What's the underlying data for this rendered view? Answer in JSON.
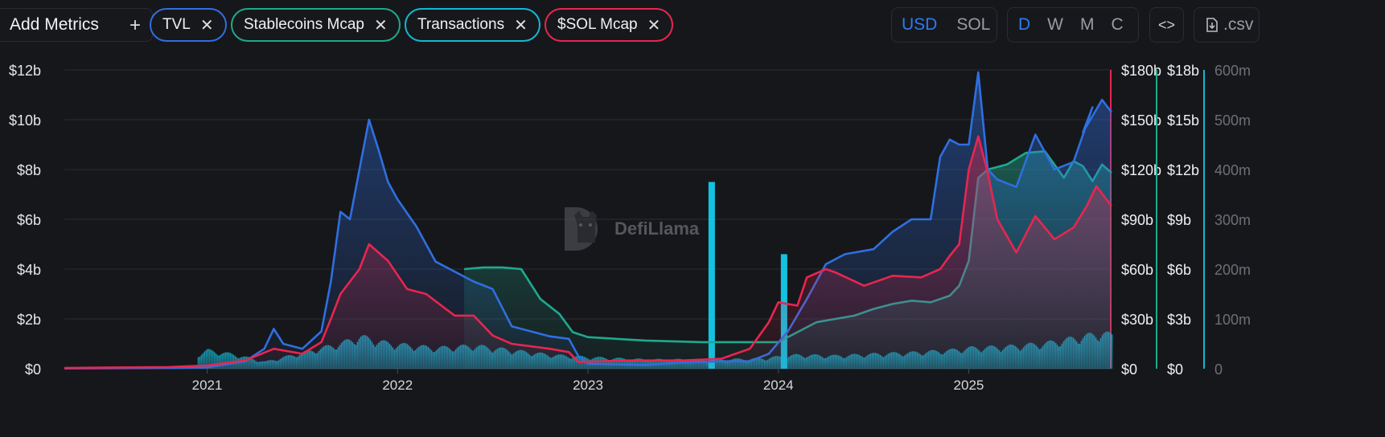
{
  "toolbar": {
    "add_metrics_label": "Add Metrics",
    "add_icon": "plus-icon",
    "chips": [
      {
        "label": "TVL",
        "color": "#2f6fe0"
      },
      {
        "label": "Stablecoins Mcap",
        "color": "#1fa98e"
      },
      {
        "label": "Transactions",
        "color": "#13b8d6"
      },
      {
        "label": "$SOL Mcap",
        "color": "#e8264f"
      }
    ],
    "denomination": {
      "options": [
        "USD",
        "SOL"
      ],
      "selected": "USD"
    },
    "period": {
      "options": [
        "D",
        "W",
        "M",
        "C"
      ],
      "selected": "D"
    },
    "embed_icon": "code-icon",
    "csv_label": ".csv",
    "csv_icon": "file-download-icon"
  },
  "watermark": {
    "text": "DefiLlama",
    "icon": "llama-logo-icon"
  },
  "chart_data": {
    "type": "area",
    "x_labels": [
      "2021",
      "2022",
      "2023",
      "2024",
      "2025"
    ],
    "axes": {
      "tvl": {
        "ticks": [
          "$0",
          "$2b",
          "$4b",
          "$6b",
          "$8b",
          "$10b",
          "$12b"
        ],
        "range": [
          0,
          12
        ],
        "unit": "b USD"
      },
      "sol_mcap": {
        "ticks": [
          "$0",
          "$30b",
          "$60b",
          "$90b",
          "$120b",
          "$150b",
          "$180b"
        ],
        "range": [
          0,
          180
        ],
        "unit": "b USD",
        "color": "#e8264f"
      },
      "stablecoins": {
        "ticks": [
          "$0",
          "$3b",
          "$6b",
          "$9b",
          "$12b",
          "$15b",
          "$18b"
        ],
        "range": [
          0,
          18
        ],
        "unit": "b USD",
        "color": "#1fa98e"
      },
      "transactions": {
        "ticks": [
          "0",
          "100m",
          "200m",
          "300m",
          "400m",
          "500m",
          "600m"
        ],
        "range": [
          0,
          600
        ],
        "unit": "m",
        "color": "#13b8d6"
      }
    },
    "series": [
      {
        "name": "TVL",
        "axis": "tvl",
        "color": "#2f6fe0",
        "x": [
          2020.25,
          2020.8,
          2021.0,
          2021.2,
          2021.3,
          2021.35,
          2021.4,
          2021.5,
          2021.6,
          2021.65,
          2021.7,
          2021.75,
          2021.8,
          2021.85,
          2021.9,
          2021.95,
          2022.0,
          2022.1,
          2022.2,
          2022.3,
          2022.4,
          2022.5,
          2022.6,
          2022.7,
          2022.8,
          2022.9,
          2022.95,
          2023.0,
          2023.3,
          2023.5,
          2023.7,
          2023.85,
          2023.95,
          2024.05,
          2024.15,
          2024.25,
          2024.35,
          2024.5,
          2024.6,
          2024.7,
          2024.8,
          2024.85,
          2024.9,
          2024.95,
          2025.0,
          2025.05,
          2025.1,
          2025.15,
          2025.25,
          2025.35,
          2025.45,
          2025.55,
          2025.65,
          2025.6,
          2025.7,
          2025.75
        ],
        "values": [
          0.01,
          0.03,
          0.05,
          0.3,
          0.8,
          1.6,
          1.0,
          0.8,
          1.5,
          3.5,
          6.3,
          6.0,
          8.0,
          10.0,
          8.8,
          7.5,
          6.8,
          5.7,
          4.3,
          3.9,
          3.5,
          3.2,
          1.7,
          1.5,
          1.3,
          1.2,
          0.5,
          0.2,
          0.15,
          0.25,
          0.3,
          0.3,
          0.6,
          1.5,
          2.8,
          4.2,
          4.6,
          4.8,
          5.5,
          6.0,
          6.0,
          8.5,
          9.2,
          9.0,
          9.0,
          11.9,
          8.0,
          7.6,
          7.3,
          9.4,
          8.0,
          8.3,
          10.5,
          9.5,
          10.8,
          10.3
        ]
      },
      {
        "name": "$SOL Mcap",
        "axis": "sol_mcap",
        "color": "#e8264f",
        "x": [
          2020.25,
          2020.8,
          2021.0,
          2021.2,
          2021.35,
          2021.5,
          2021.6,
          2021.65,
          2021.7,
          2021.8,
          2021.85,
          2021.95,
          2022.05,
          2022.15,
          2022.3,
          2022.4,
          2022.5,
          2022.6,
          2022.8,
          2022.9,
          2022.95,
          2023.2,
          2023.5,
          2023.7,
          2023.85,
          2023.95,
          2024.0,
          2024.1,
          2024.15,
          2024.25,
          2024.3,
          2024.45,
          2024.6,
          2024.75,
          2024.85,
          2024.9,
          2024.95,
          2025.0,
          2025.05,
          2025.1,
          2025.15,
          2025.25,
          2025.35,
          2025.45,
          2025.55,
          2025.62,
          2025.67,
          2025.75
        ],
        "values": [
          0.5,
          1,
          2,
          5,
          12,
          9,
          16,
          30,
          45,
          60,
          75,
          65,
          48,
          45,
          32,
          32,
          20,
          15,
          12,
          10,
          4,
          5,
          5,
          6,
          12,
          28,
          40,
          38,
          55,
          60,
          58,
          50,
          56,
          55,
          60,
          68,
          75,
          120,
          140,
          118,
          90,
          70,
          92,
          78,
          85,
          98,
          110,
          98
        ]
      },
      {
        "name": "Stablecoins Mcap",
        "axis": "stablecoins",
        "color": "#1fa98e",
        "x": [
          2022.35,
          2022.45,
          2022.55,
          2022.65,
          2022.75,
          2022.85,
          2022.92,
          2023.0,
          2023.3,
          2023.6,
          2023.9,
          2024.0,
          2024.2,
          2024.4,
          2024.5,
          2024.6,
          2024.7,
          2024.8,
          2024.9,
          2024.95,
          2025.0,
          2025.05,
          2025.1,
          2025.2,
          2025.3,
          2025.4,
          2025.5,
          2025.55,
          2025.6,
          2025.65,
          2025.7,
          2025.75
        ],
        "values": [
          6.0,
          6.1,
          6.1,
          6.0,
          4.2,
          3.3,
          2.2,
          1.9,
          1.7,
          1.6,
          1.6,
          1.6,
          2.8,
          3.2,
          3.6,
          3.9,
          4.1,
          4.0,
          4.4,
          5.0,
          6.5,
          11.5,
          12.0,
          12.3,
          13.0,
          13.1,
          11.5,
          12.5,
          12.2,
          11.3,
          12.3,
          11.8
        ]
      },
      {
        "name": "Transactions",
        "axis": "transactions",
        "color": "#13b8d6",
        "x": [
          2020.25,
          2020.8,
          2021.0,
          2021.15,
          2021.3,
          2021.5,
          2021.7,
          2021.8,
          2021.95,
          2022.2,
          2022.4,
          2022.6,
          2022.8,
          2023.0,
          2023.3,
          2023.5,
          2023.7,
          2023.9,
          2024.1,
          2024.3,
          2024.5,
          2024.7,
          2024.9,
          2025.0,
          2025.2,
          2025.4,
          2025.6,
          2025.7,
          2025.75
        ],
        "values": [
          0,
          5,
          40,
          30,
          15,
          35,
          55,
          70,
          55,
          45,
          50,
          40,
          30,
          25,
          20,
          20,
          20,
          22,
          30,
          28,
          32,
          35,
          40,
          45,
          48,
          55,
          70,
          78,
          72
        ],
        "spikes": [
          {
            "x": 2023.65,
            "value": 375
          },
          {
            "x": 2024.03,
            "value": 230
          }
        ]
      }
    ]
  }
}
